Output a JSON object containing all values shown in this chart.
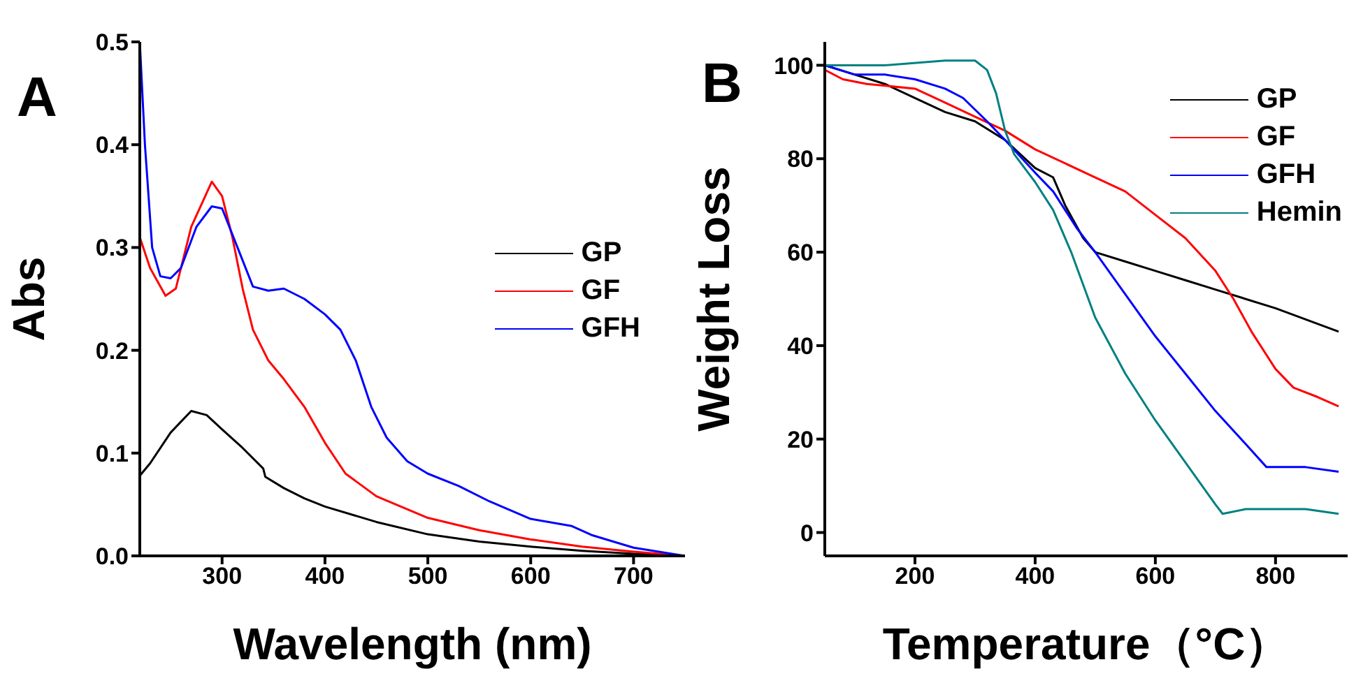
{
  "chart_data": [
    {
      "type": "line",
      "xlabel": "Wavelength (nm)",
      "ylabel": "Abs",
      "annotations": [
        "A"
      ],
      "xlim": [
        220,
        750
      ],
      "xticks": [
        300,
        400,
        500,
        600,
        700
      ],
      "ylim": [
        0,
        0.5
      ],
      "yticks": [
        {
          "value": 0,
          "label": "0.0"
        },
        0.1,
        0.2,
        0.3,
        0.4,
        0.5
      ],
      "legend": "right",
      "grid": false,
      "marker": "none",
      "line_style": "solid",
      "series": [
        {
          "name": "GP",
          "color": "#000000",
          "x": [
            220,
            230,
            250,
            270,
            285,
            300,
            320,
            340,
            342,
            360,
            380,
            400,
            450,
            500,
            550,
            600,
            650,
            700,
            750
          ],
          "values": [
            0.078,
            0.09,
            0.12,
            0.141,
            0.137,
            0.123,
            0.105,
            0.085,
            0.077,
            0.066,
            0.056,
            0.048,
            0.033,
            0.021,
            0.014,
            0.009,
            0.005,
            0.002,
            0
          ]
        },
        {
          "name": "GF",
          "color": "#ff0000",
          "x": [
            220,
            230,
            245,
            255,
            270,
            290,
            300,
            310,
            320,
            330,
            345,
            360,
            380,
            400,
            420,
            450,
            500,
            550,
            600,
            650,
            700,
            750
          ],
          "values": [
            0.31,
            0.28,
            0.253,
            0.26,
            0.32,
            0.364,
            0.35,
            0.31,
            0.26,
            0.22,
            0.19,
            0.172,
            0.145,
            0.11,
            0.08,
            0.058,
            0.037,
            0.025,
            0.016,
            0.009,
            0.004,
            0
          ]
        },
        {
          "name": "GFH",
          "color": "#0000ff",
          "x": [
            220,
            225,
            232,
            240,
            250,
            260,
            275,
            290,
            300,
            315,
            330,
            345,
            360,
            380,
            400,
            415,
            430,
            445,
            460,
            480,
            500,
            530,
            560,
            600,
            640,
            660,
            700,
            750
          ],
          "values": [
            0.5,
            0.4,
            0.3,
            0.272,
            0.27,
            0.28,
            0.32,
            0.34,
            0.338,
            0.3,
            0.262,
            0.258,
            0.26,
            0.25,
            0.235,
            0.22,
            0.19,
            0.145,
            0.115,
            0.092,
            0.08,
            0.068,
            0.053,
            0.036,
            0.029,
            0.02,
            0.008,
            0
          ]
        }
      ]
    },
    {
      "type": "line",
      "xlabel": "Temperature（°C）",
      "ylabel": "Weight Loss",
      "annotations": [
        "B"
      ],
      "xlim": [
        50,
        920
      ],
      "xticks": [
        200,
        400,
        600,
        800
      ],
      "ylim": [
        -5,
        105
      ],
      "yticks": [
        0,
        20,
        40,
        60,
        80,
        100
      ],
      "legend": "top right",
      "grid": false,
      "marker": "none",
      "line_style": "solid",
      "series": [
        {
          "name": "GP",
          "color": "#000000",
          "x": [
            50,
            100,
            150,
            200,
            250,
            300,
            350,
            400,
            430,
            450,
            480,
            500,
            550,
            600,
            650,
            700,
            800,
            905
          ],
          "values": [
            100,
            98,
            96,
            93,
            90,
            88,
            84,
            78,
            76,
            70,
            63,
            60,
            58,
            56,
            54,
            52,
            48,
            43
          ]
        },
        {
          "name": "GF",
          "color": "#ff0000",
          "x": [
            50,
            80,
            120,
            200,
            250,
            300,
            350,
            400,
            500,
            550,
            600,
            650,
            700,
            730,
            760,
            800,
            830,
            870,
            905
          ],
          "values": [
            99,
            97,
            96,
            95,
            92,
            89,
            86,
            82,
            76,
            73,
            68,
            63,
            56,
            50,
            43,
            35,
            31,
            29,
            27
          ]
        },
        {
          "name": "GFH",
          "color": "#0000ff",
          "x": [
            50,
            100,
            150,
            200,
            250,
            280,
            320,
            350,
            400,
            430,
            470,
            500,
            550,
            600,
            650,
            700,
            750,
            785,
            850,
            905
          ],
          "values": [
            100,
            98,
            98,
            97,
            95,
            93,
            88,
            84,
            77,
            73,
            65,
            60,
            51,
            42,
            34,
            26,
            19,
            14,
            14,
            13
          ]
        },
        {
          "name": "Hemin",
          "color": "#008080",
          "x": [
            50,
            150,
            250,
            300,
            320,
            335,
            350,
            365,
            400,
            430,
            460,
            500,
            550,
            600,
            650,
            700,
            712,
            750,
            800,
            850,
            905
          ],
          "values": [
            100,
            100,
            101,
            101,
            99,
            94,
            86,
            81,
            75,
            69,
            60,
            46,
            34,
            24,
            15,
            6,
            4,
            5,
            5,
            5,
            4
          ]
        }
      ]
    }
  ]
}
